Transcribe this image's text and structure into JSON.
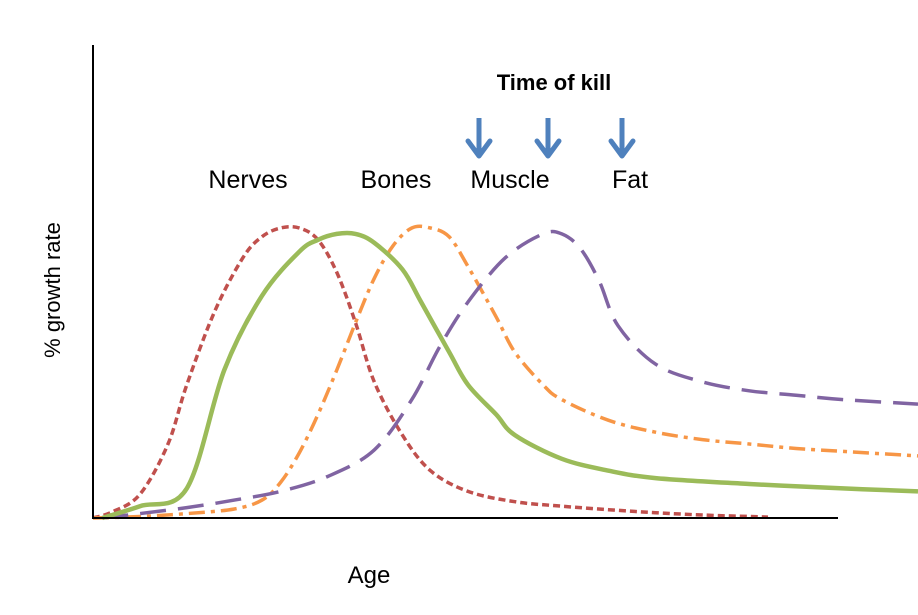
{
  "chart_data": {
    "type": "line",
    "title": "",
    "xlabel": "Age",
    "ylabel": "% growth rate",
    "grid": false,
    "legend": "none",
    "annotation": {
      "header": "Time of kill",
      "arrow_color": "#4f81bd",
      "arrow_count": 3
    },
    "series": [
      {
        "name": "Nerves",
        "color": "#c0504d",
        "dash": "short-dash",
        "x": [
          0,
          2,
          5,
          8,
          10,
          13,
          16,
          18,
          20,
          22,
          24,
          26,
          28,
          30,
          33,
          36,
          40,
          45,
          50,
          55,
          60,
          65,
          70,
          72
        ],
        "y": [
          0,
          2,
          8,
          25,
          45,
          70,
          88,
          95,
          98,
          98,
          94,
          83,
          66,
          46,
          28,
          16,
          9,
          5.5,
          4,
          2.8,
          1.8,
          1,
          0.5,
          0.3
        ]
      },
      {
        "name": "Bones",
        "color": "#9bbb59",
        "dash": "solid",
        "x": [
          1,
          5,
          10,
          14,
          18,
          22,
          24,
          26,
          28,
          30,
          33,
          35,
          38,
          40,
          43,
          45,
          50,
          55,
          60,
          70,
          80,
          88
        ],
        "y": [
          0,
          4,
          10,
          50,
          75,
          90,
          94,
          96,
          96,
          93,
          84,
          73,
          56,
          45,
          35,
          28,
          20,
          16,
          13.5,
          11.5,
          10,
          9
        ]
      },
      {
        "name": "Muscle",
        "color": "#f79646",
        "dash": "dash-dot",
        "x": [
          0,
          5,
          10,
          15,
          18,
          20,
          22,
          24,
          26,
          28,
          30,
          32,
          34,
          36,
          38,
          40,
          43,
          45,
          48,
          50,
          55,
          60,
          65,
          70,
          75,
          80,
          88
        ],
        "y": [
          0,
          0.5,
          1.5,
          3,
          6,
          12,
          22,
          35,
          50,
          66,
          81,
          92,
          98,
          98,
          95,
          85,
          68,
          56,
          45,
          40,
          33,
          29,
          26.5,
          25,
          23.5,
          22.5,
          21
        ]
      },
      {
        "name": "Fat",
        "color": "#8064a2",
        "dash": "long-dash",
        "x": [
          1,
          5,
          10,
          15,
          20,
          25,
          30,
          34,
          37,
          40,
          44,
          48,
          50,
          52,
          54,
          56,
          60,
          65,
          70,
          75,
          80,
          88
        ],
        "y": [
          0,
          1.5,
          3.5,
          6,
          9,
          14,
          23,
          40,
          58,
          73,
          88,
          96,
          96,
          91,
          80,
          65,
          52,
          46,
          43,
          41.5,
          40,
          38.5
        ]
      }
    ]
  }
}
